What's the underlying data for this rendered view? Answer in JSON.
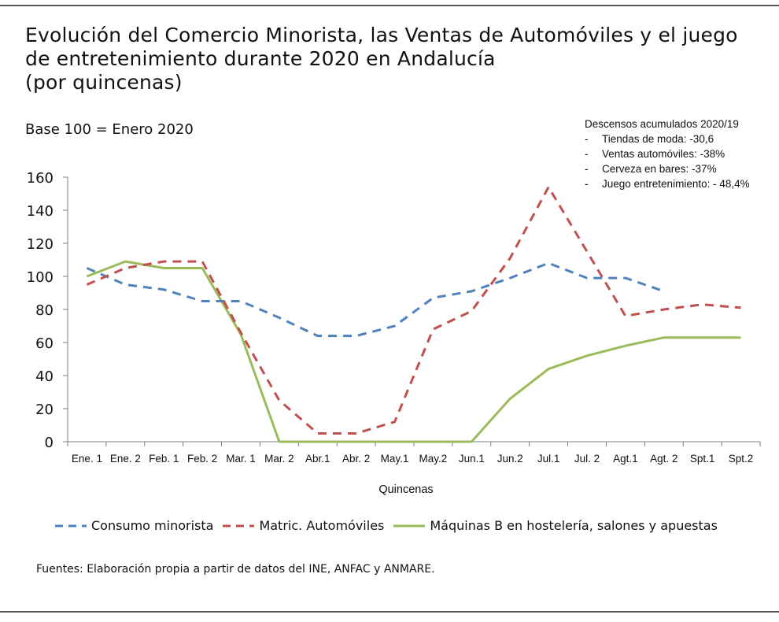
{
  "title_lines": [
    "Evolución del Comercio Minorista, las Ventas de Automóviles y el juego",
    "de entretenimiento durante 2020 en Andalucía",
    "(por quincenas)"
  ],
  "base_note": "Base 100 = Enero 2020",
  "annotation": {
    "heading": "Descensos acumulados 2020/19",
    "items": [
      "Tiendas de moda: -30,6",
      "Ventas automóviles: -38%",
      "Cerveza en bares: -37%",
      "Juego entretenimiento: - 48,4%"
    ]
  },
  "source": "Fuentes: Elaboración propia a partir de datos del INE, ANFAC y ANMARE.",
  "chart_data": {
    "type": "line",
    "xlabel": "Quincenas",
    "ylabel": "",
    "ylim": [
      0,
      160
    ],
    "yticks": [
      0,
      20,
      40,
      60,
      80,
      100,
      120,
      140,
      160
    ],
    "grid": false,
    "legend_position": "bottom",
    "categories": [
      "Ene. 1",
      "Ene. 2",
      "Feb. 1",
      "Feb. 2",
      "Mar. 1",
      "Mar. 2",
      "Abr.1",
      "Abr. 2",
      "May.1",
      "May.2",
      "Jun.1",
      "Jun.2",
      "Jul.1",
      "Jul. 2",
      "Agt.1",
      "Agt. 2",
      "Spt.1",
      "Spt.2"
    ],
    "series": [
      {
        "name": "Consumo minorista",
        "color": "#4f81bd",
        "style": "dashed",
        "values": [
          105,
          95,
          92,
          85,
          85,
          75,
          64,
          64,
          70,
          87,
          91,
          99,
          108,
          99,
          99,
          91,
          null,
          null
        ]
      },
      {
        "name": "Matric. Automóviles",
        "color": "#c0504d",
        "style": "dashed",
        "values": [
          95,
          105,
          109,
          109,
          66,
          25,
          5,
          5,
          12,
          68,
          79,
          111,
          154,
          115,
          76,
          80,
          83,
          81
        ]
      },
      {
        "name": "Máquinas B en hostelería, salones y apuestas",
        "color": "#9bbb59",
        "style": "solid",
        "values": [
          100,
          109,
          105,
          105,
          65,
          0,
          0,
          0,
          0,
          0,
          0,
          26,
          44,
          52,
          58,
          63,
          63,
          63
        ]
      }
    ]
  }
}
